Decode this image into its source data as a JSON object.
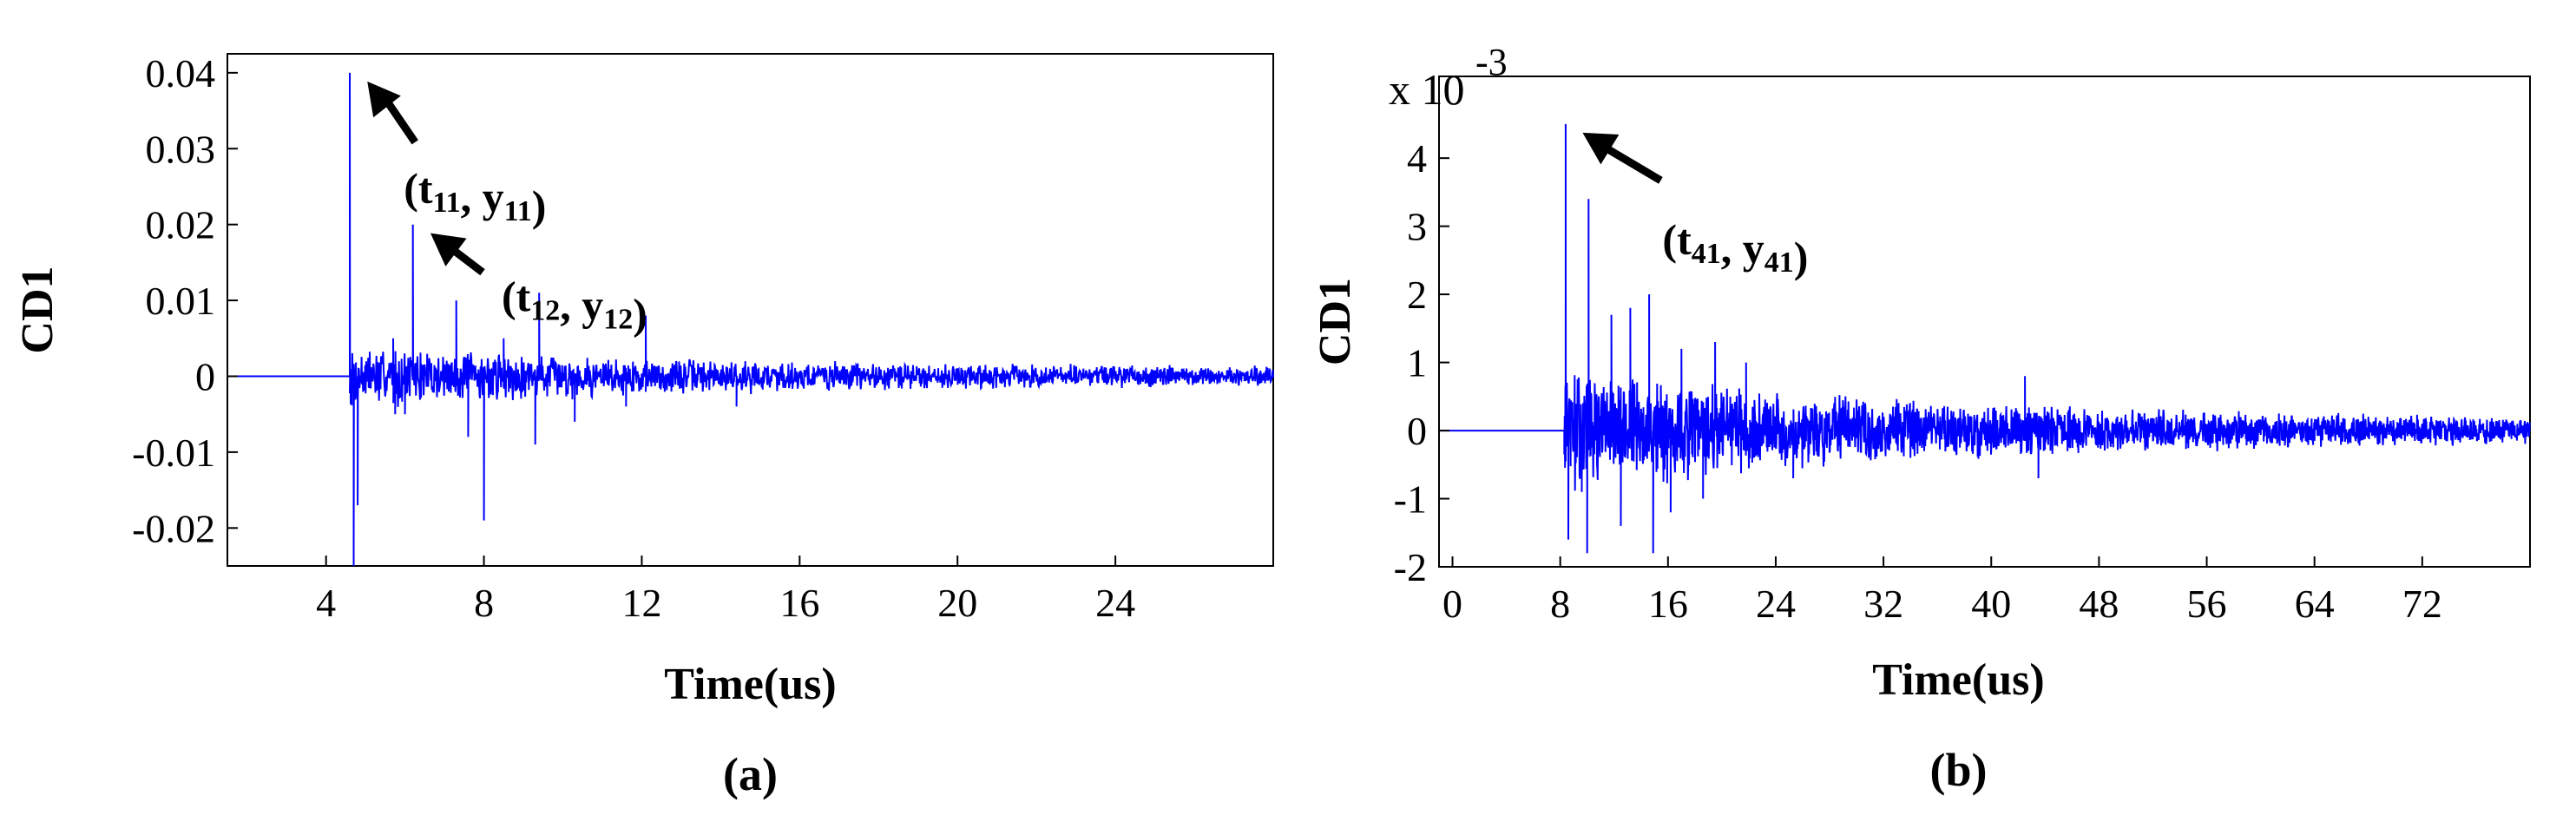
{
  "chart_data": [
    {
      "type": "line",
      "panel_label": "(a)",
      "xlabel": "Time(us)",
      "ylabel": "CD1",
      "xlim": [
        1.5,
        28
      ],
      "ylim": [
        -0.025,
        0.0425
      ],
      "xticks": [
        4,
        8,
        12,
        16,
        20,
        24
      ],
      "yticks": [
        -0.02,
        -0.01,
        0,
        0.01,
        0.02,
        0.03,
        0.04
      ],
      "ytick_labels": [
        "-0.02",
        "-0.01",
        "0",
        "0.01",
        "0.02",
        "0.03",
        "0.04"
      ],
      "color": "#0000ff",
      "onset": 4.6,
      "spikes": [
        {
          "x": 4.6,
          "y": 0.04
        },
        {
          "x": 4.7,
          "y": -0.025
        },
        {
          "x": 4.8,
          "y": -0.017
        },
        {
          "x": 5.7,
          "y": 0.005
        },
        {
          "x": 5.75,
          "y": -0.005
        },
        {
          "x": 6.2,
          "y": 0.02
        },
        {
          "x": 6.0,
          "y": -0.005
        },
        {
          "x": 7.3,
          "y": 0.01
        },
        {
          "x": 7.6,
          "y": -0.008
        },
        {
          "x": 8.0,
          "y": -0.019
        },
        {
          "x": 8.5,
          "y": 0.005
        },
        {
          "x": 9.4,
          "y": 0.011
        },
        {
          "x": 9.3,
          "y": -0.009
        },
        {
          "x": 10.3,
          "y": -0.006
        },
        {
          "x": 12.1,
          "y": 0.008
        },
        {
          "x": 11.6,
          "y": -0.004
        },
        {
          "x": 14.4,
          "y": -0.004
        }
      ],
      "noise": {
        "start": 4.6,
        "end": 28,
        "amp_start": 0.0045,
        "amp_end": 0.001,
        "decay": 0.09
      },
      "annotations": [
        {
          "base": "t",
          "sub1": "11",
          "sep": ",",
          "base2": "y",
          "sub2": "11",
          "open": "(",
          "close": ")",
          "x": 4.65,
          "y": 0.04
        },
        {
          "base": "t",
          "sub1": "12",
          "sep": ",",
          "base2": "y",
          "sub2": "12",
          "open": "(",
          "close": ")",
          "x": 6.25,
          "y": 0.02
        }
      ]
    },
    {
      "type": "line",
      "panel_label": "(b)",
      "xlabel": "Time(us)",
      "ylabel": "CD1",
      "scale_label": "x 10",
      "scale_exponent": "-3",
      "xlim": [
        -1,
        80
      ],
      "ylim": [
        -2,
        5.2
      ],
      "xticks": [
        0,
        8,
        16,
        24,
        32,
        40,
        48,
        56,
        64,
        72
      ],
      "yticks": [
        -2,
        -1,
        0,
        1,
        2,
        3,
        4
      ],
      "ytick_labels": [
        "-2",
        "-1",
        "0",
        "1",
        "2",
        "3",
        "4"
      ],
      "color": "#0000ff",
      "onset": 8.3,
      "spikes": [
        {
          "x": 8.4,
          "y": 4.5
        },
        {
          "x": 8.6,
          "y": -1.6
        },
        {
          "x": 9.6,
          "y": -0.9
        },
        {
          "x": 10.0,
          "y": -1.8
        },
        {
          "x": 10.1,
          "y": 3.4
        },
        {
          "x": 11.8,
          "y": 1.7
        },
        {
          "x": 12.5,
          "y": -1.4
        },
        {
          "x": 13.2,
          "y": 1.8
        },
        {
          "x": 14.6,
          "y": 2.0
        },
        {
          "x": 14.9,
          "y": -1.8
        },
        {
          "x": 16.2,
          "y": -1.2
        },
        {
          "x": 17.0,
          "y": 1.2
        },
        {
          "x": 19.5,
          "y": 1.3
        },
        {
          "x": 18.6,
          "y": -1.0
        },
        {
          "x": 21.8,
          "y": 1.0
        },
        {
          "x": 25.3,
          "y": -0.7
        },
        {
          "x": 42.5,
          "y": 0.8
        },
        {
          "x": 43.5,
          "y": -0.7
        }
      ],
      "noise": {
        "start": 8.3,
        "end": 80,
        "amp_start": 1.0,
        "amp_end": 0.15,
        "decay": 0.035
      },
      "annotations": [
        {
          "base": "t",
          "sub1": "41",
          "sep": ",",
          "base2": "y",
          "sub2": "41",
          "open": "(",
          "close": ")",
          "x": 8.5,
          "y": 4.5
        }
      ]
    }
  ]
}
